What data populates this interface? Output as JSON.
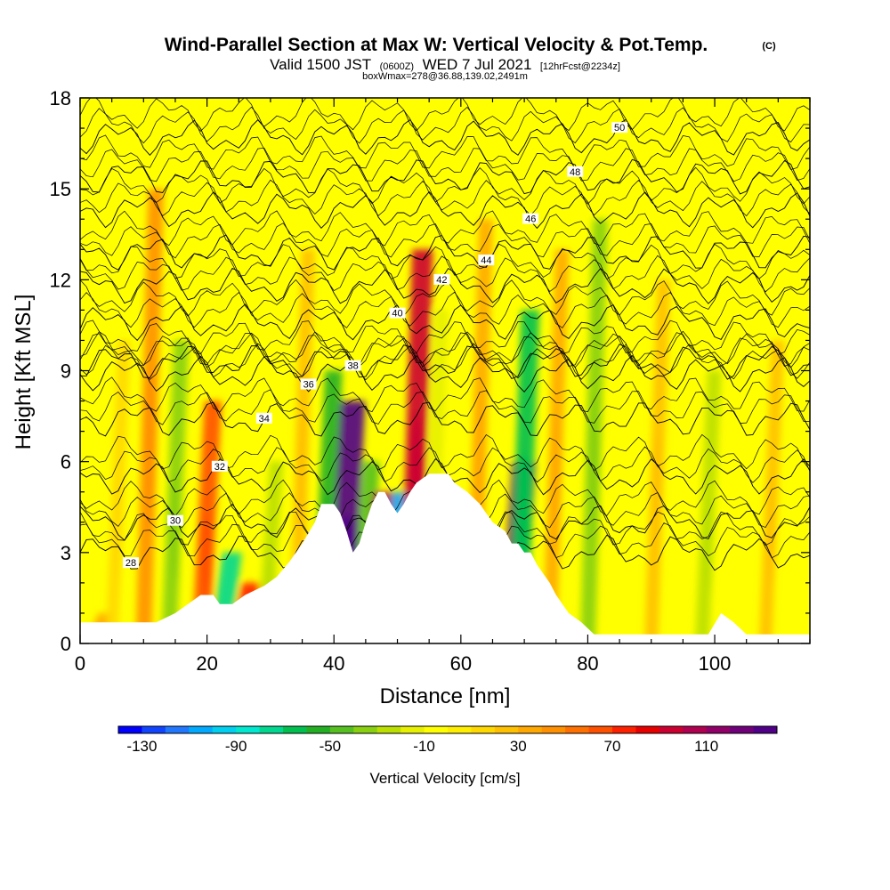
{
  "header": {
    "title_main": "Wind-Parallel Section at Max W: Vertical Velocity & Pot.Temp.",
    "title_copyright": "(C)",
    "valid_prefix": "Valid 1500 JST",
    "valid_utc": "(0600Z)",
    "valid_date": "WED 7 Jul 2021",
    "forecast_info": "[12hrFcst@2234z]",
    "box_wmax": "boxWmax=278@36.88,139.02,2491m"
  },
  "chart_data": {
    "type": "heatmap",
    "xlabel": "Distance [nm]",
    "ylabel": "Height [Kft MSL]",
    "xlim": [
      0,
      115
    ],
    "ylim": [
      0,
      18
    ],
    "x_ticks": [
      0,
      20,
      40,
      60,
      80,
      100
    ],
    "y_ticks": [
      0,
      3,
      6,
      9,
      12,
      15,
      18
    ],
    "colorbar": {
      "title": "Vertical Velocity [cm/s]",
      "min": -140,
      "max": 140,
      "step": 10,
      "tick_labels": [
        "-130",
        "-90",
        "-50",
        "-10",
        "30",
        "70",
        "110"
      ],
      "tick_values": [
        -130,
        -90,
        -50,
        -10,
        30,
        70,
        110
      ],
      "colors": [
        "#0000ff",
        "#1144ff",
        "#2277ff",
        "#00aaff",
        "#00d0f0",
        "#00e8d0",
        "#00d890",
        "#00c050",
        "#22b022",
        "#55c020",
        "#88d010",
        "#bbe000",
        "#e6f000",
        "#ffff00",
        "#ffee00",
        "#ffd800",
        "#ffc000",
        "#ffa800",
        "#ff9000",
        "#ff7000",
        "#ff5000",
        "#ff2000",
        "#e80000",
        "#cc0030",
        "#b00050",
        "#900068",
        "#70007a",
        "#500088"
      ]
    },
    "terrain": [
      [
        0,
        0.7
      ],
      [
        5,
        0.7
      ],
      [
        12,
        0.7
      ],
      [
        15,
        1.0
      ],
      [
        17,
        1.3
      ],
      [
        19,
        1.6
      ],
      [
        21,
        1.6
      ],
      [
        22,
        1.3
      ],
      [
        24,
        1.3
      ],
      [
        26,
        1.6
      ],
      [
        29,
        1.9
      ],
      [
        31,
        2.2
      ],
      [
        33,
        2.7
      ],
      [
        35,
        3.3
      ],
      [
        37,
        4.0
      ],
      [
        38,
        4.6
      ],
      [
        40,
        4.6
      ],
      [
        41,
        4.3
      ],
      [
        42,
        3.7
      ],
      [
        43,
        3.0
      ],
      [
        44,
        3.3
      ],
      [
        45,
        4.0
      ],
      [
        46,
        4.6
      ],
      [
        47,
        5.0
      ],
      [
        48,
        5.0
      ],
      [
        49,
        4.6
      ],
      [
        50,
        4.3
      ],
      [
        51,
        4.6
      ],
      [
        52,
        5.0
      ],
      [
        53,
        5.3
      ],
      [
        55,
        5.6
      ],
      [
        57,
        5.6
      ],
      [
        58,
        5.6
      ],
      [
        59,
        5.3
      ],
      [
        61,
        5.0
      ],
      [
        63,
        4.6
      ],
      [
        64,
        4.3
      ],
      [
        65,
        4.0
      ],
      [
        67,
        3.7
      ],
      [
        68,
        3.3
      ],
      [
        69,
        3.3
      ],
      [
        70,
        3.0
      ],
      [
        71,
        3.0
      ],
      [
        72,
        2.6
      ],
      [
        73,
        2.3
      ],
      [
        74,
        2.0
      ],
      [
        75,
        1.6
      ],
      [
        76,
        1.3
      ],
      [
        77,
        1.0
      ],
      [
        79,
        0.7
      ],
      [
        81,
        0.3
      ],
      [
        85,
        0.3
      ],
      [
        95,
        0.3
      ],
      [
        99,
        0.3
      ],
      [
        101,
        1.0
      ],
      [
        103,
        0.7
      ],
      [
        105,
        0.3
      ],
      [
        110,
        0.3
      ],
      [
        115,
        0.3
      ]
    ],
    "w_cells": [
      {
        "x": 2,
        "h": 1,
        "w": 30
      },
      {
        "x": 5,
        "h": 10,
        "w": 15
      },
      {
        "x": 10,
        "h": 15,
        "w": 45
      },
      {
        "x": 14,
        "h": 10,
        "w": -40
      },
      {
        "x": 19,
        "h": 8,
        "w": 60
      },
      {
        "x": 22,
        "h": 3,
        "w": -80
      },
      {
        "x": 25,
        "h": 2,
        "w": 70
      },
      {
        "x": 29,
        "h": 6,
        "w": -30
      },
      {
        "x": 34,
        "h": 13,
        "w": 25
      },
      {
        "x": 38,
        "h": 9,
        "w": -60
      },
      {
        "x": 41,
        "h": 8,
        "w": 130
      },
      {
        "x": 44,
        "h": 6,
        "w": -50
      },
      {
        "x": 46,
        "h": 5,
        "w": 100
      },
      {
        "x": 49,
        "h": 5,
        "w": -110
      },
      {
        "x": 52,
        "h": 13,
        "w": 90
      },
      {
        "x": 55,
        "h": 11,
        "w": -20
      },
      {
        "x": 62,
        "h": 14,
        "w": 35
      },
      {
        "x": 68,
        "h": 6,
        "w": 120
      },
      {
        "x": 69,
        "h": 11,
        "w": -70
      },
      {
        "x": 74,
        "h": 13,
        "w": 30
      },
      {
        "x": 80,
        "h": 14,
        "w": -40
      },
      {
        "x": 90,
        "h": 12,
        "w": 25
      },
      {
        "x": 98,
        "h": 9,
        "w": -30
      },
      {
        "x": 108,
        "h": 10,
        "w": 20
      }
    ],
    "theta_contours": [
      {
        "label": "28",
        "z": 3.0
      },
      {
        "label": "30",
        "z": 4.0
      },
      {
        "label": "32",
        "z": 5.5
      },
      {
        "label": "34",
        "z": 7.4
      },
      {
        "label": "36",
        "z": 8.9
      },
      {
        "label": "38",
        "z": 9.3
      },
      {
        "label": "40",
        "z": 10.6
      },
      {
        "label": "42",
        "z": 11.8
      },
      {
        "label": "44",
        "z": 12.9
      },
      {
        "label": "46",
        "z": 14.3
      },
      {
        "label": "48",
        "z": 15.4
      },
      {
        "label": "50",
        "z": 16.7
      }
    ]
  }
}
